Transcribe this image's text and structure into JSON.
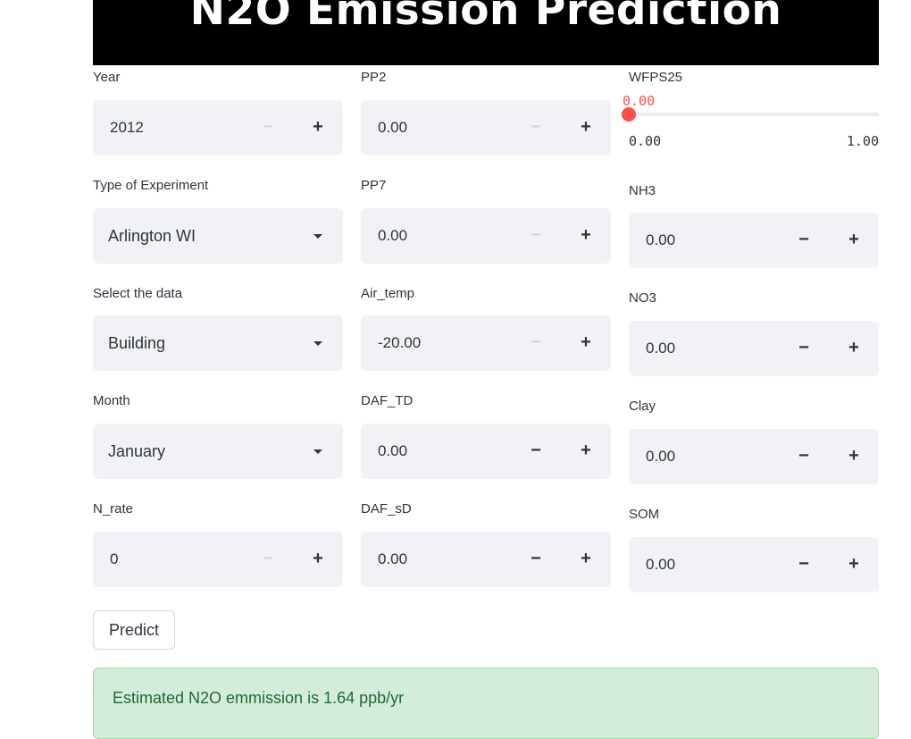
{
  "title": "N2O Emission Prediction",
  "col1": {
    "year": {
      "label": "Year",
      "value": "2012"
    },
    "experiment": {
      "label": "Type of Experiment",
      "value": "Arlington WI"
    },
    "data": {
      "label": "Select the data",
      "value": "Building"
    },
    "month": {
      "label": "Month",
      "value": "January"
    },
    "n_rate": {
      "label": "N_rate",
      "value": "0"
    }
  },
  "col2": {
    "pp2": {
      "label": "PP2",
      "value": "0.00"
    },
    "pp7": {
      "label": "PP7",
      "value": "0.00"
    },
    "air_temp": {
      "label": "Air_temp",
      "value": "-20.00"
    },
    "daf_td": {
      "label": "DAF_TD",
      "value": "0.00"
    },
    "daf_sd": {
      "label": "DAF_sD",
      "value": "0.00"
    }
  },
  "col3": {
    "wfps25": {
      "label": "WFPS25",
      "value": "0.00",
      "min": "0.00",
      "max": "1.00",
      "fraction": 0
    },
    "nh3": {
      "label": "NH3",
      "value": "0.00"
    },
    "no3": {
      "label": "NO3",
      "value": "0.00"
    },
    "clay": {
      "label": "Clay",
      "value": "0.00"
    },
    "som": {
      "label": "SOM",
      "value": "0.00"
    }
  },
  "stepper": {
    "minus": "−",
    "plus": "+"
  },
  "predict_label": "Predict",
  "result_text": "Estimated N2O emmission is 1.64 ppb/yr",
  "colors": {
    "accent": "#ff4b4b",
    "success_bg": "#d4edda",
    "success_text": "#1e6b32",
    "input_bg": "#f0f2f6"
  }
}
